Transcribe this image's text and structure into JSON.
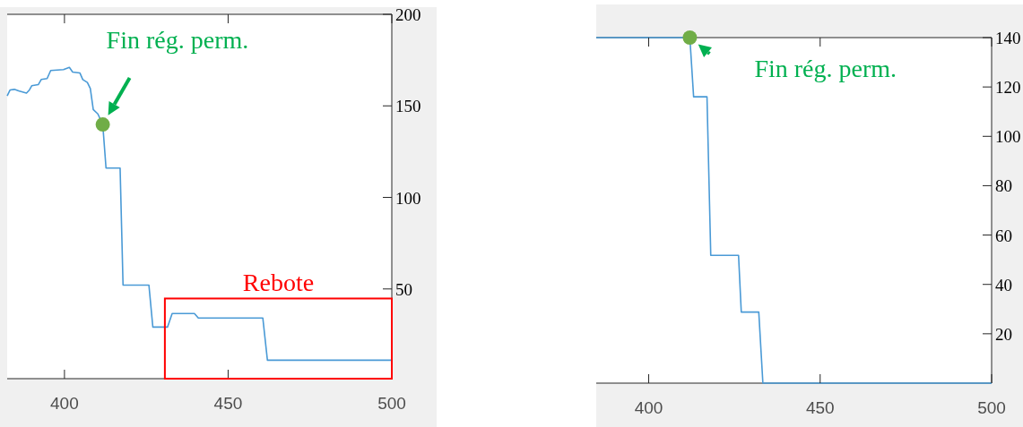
{
  "chart_data": [
    {
      "type": "line",
      "xlim": [
        382.5,
        500
      ],
      "ylim": [
        1,
        200
      ],
      "xticks": [
        400,
        450,
        500
      ],
      "yticks": [
        50,
        100,
        150,
        200
      ],
      "grid": false,
      "line_style": "solid",
      "series": [
        {
          "color": "#4a9ad6",
          "x": [
            382.5,
            383.4,
            384.7,
            386,
            388.4,
            389.3,
            390,
            392,
            392.9,
            394.7,
            395.8,
            399.7,
            401.5,
            402.5,
            404.7,
            405.6,
            407,
            407.9,
            408.8,
            410.2,
            411.7,
            412.7,
            417,
            417.9,
            425.8,
            427,
            431.5,
            432.9,
            439.7,
            440.9,
            460.6,
            462,
            500
          ],
          "values": [
            155.4,
            158.7,
            159,
            158.2,
            157,
            158.7,
            161,
            161.6,
            164.4,
            164.9,
            169.3,
            169.8,
            171,
            168.5,
            168,
            164.4,
            162.8,
            159.5,
            148,
            145.6,
            139.8,
            116,
            116,
            52.1,
            52.1,
            29.2,
            29.2,
            36.6,
            36.6,
            34.1,
            34.1,
            11.1,
            11.1
          ]
        },
        {
          "type": "scatter",
          "marker": "circle",
          "color": "#70ad47",
          "x": [
            411.7
          ],
          "values": [
            139.8
          ]
        }
      ],
      "annotations": [
        {
          "text": "Fin rég. perm.",
          "x": 411.7,
          "y": 139.8
        },
        "Rebote"
      ]
    },
    {
      "type": "line",
      "xlim": [
        384.7,
        500
      ],
      "ylim": [
        0,
        140
      ],
      "xticks": [
        400,
        450,
        500
      ],
      "yticks": [
        20,
        40,
        60,
        80,
        100,
        120,
        140
      ],
      "grid": false,
      "line_style": "solid",
      "series": [
        {
          "color": "#4a9ad6",
          "x": [
            384.7,
            412,
            413.1,
            417,
            418.1,
            426.2,
            427,
            432.1,
            433.3,
            500
          ],
          "values": [
            140,
            140,
            116,
            116,
            51.8,
            51.8,
            28.8,
            28.8,
            0,
            0
          ]
        },
        {
          "type": "scatter",
          "marker": "circle",
          "color": "#70ad47",
          "x": [
            412
          ],
          "values": [
            140
          ]
        }
      ],
      "annotations": [
        {
          "text": "Fin rég. perm.",
          "x": 412,
          "y": 140
        }
      ]
    }
  ]
}
